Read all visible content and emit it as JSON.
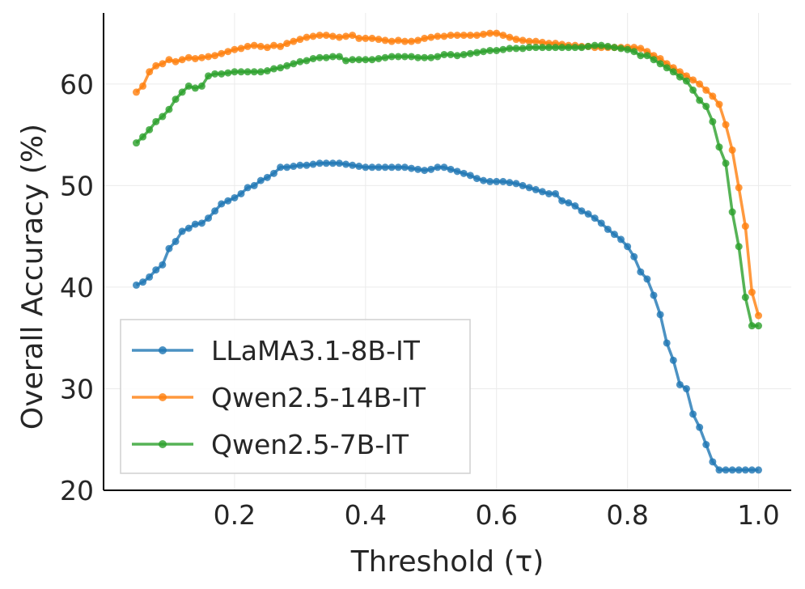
{
  "chart_data": {
    "type": "line",
    "title": "",
    "xlabel": "Threshold (τ)",
    "ylabel": "Overall Accuracy (%)",
    "xlim": [
      0.0,
      1.05
    ],
    "ylim": [
      20,
      67
    ],
    "xticks": [
      0.2,
      0.4,
      0.6,
      0.8,
      1.0
    ],
    "xtick_labels": [
      "0.2",
      "0.4",
      "0.6",
      "0.8",
      "1.0"
    ],
    "yticks": [
      20,
      30,
      40,
      50,
      60
    ],
    "ytick_labels": [
      "20",
      "30",
      "40",
      "50",
      "60"
    ],
    "grid": true,
    "legend_position": "lower-left",
    "x": [
      0.05,
      0.06,
      0.07,
      0.08,
      0.09,
      0.1,
      0.11,
      0.12,
      0.13,
      0.14,
      0.15,
      0.16,
      0.17,
      0.18,
      0.19,
      0.2,
      0.21,
      0.22,
      0.23,
      0.24,
      0.25,
      0.26,
      0.27,
      0.28,
      0.29,
      0.3,
      0.31,
      0.32,
      0.33,
      0.34,
      0.35,
      0.36,
      0.37,
      0.38,
      0.39,
      0.4,
      0.41,
      0.42,
      0.43,
      0.44,
      0.45,
      0.46,
      0.47,
      0.48,
      0.49,
      0.5,
      0.51,
      0.52,
      0.53,
      0.54,
      0.55,
      0.56,
      0.57,
      0.58,
      0.59,
      0.6,
      0.61,
      0.62,
      0.63,
      0.64,
      0.65,
      0.66,
      0.67,
      0.68,
      0.69,
      0.7,
      0.71,
      0.72,
      0.73,
      0.74,
      0.75,
      0.76,
      0.77,
      0.78,
      0.79,
      0.8,
      0.81,
      0.82,
      0.83,
      0.84,
      0.85,
      0.86,
      0.87,
      0.88,
      0.89,
      0.9,
      0.91,
      0.92,
      0.93,
      0.94,
      0.95,
      0.96,
      0.97,
      0.98,
      0.99,
      1.0
    ],
    "series": [
      {
        "name": "LLaMA3.1-8B-IT",
        "color": "#1f77b4",
        "values": [
          40.2,
          40.5,
          41.0,
          41.7,
          42.2,
          43.8,
          44.5,
          45.5,
          45.8,
          46.2,
          46.3,
          46.8,
          47.5,
          48.2,
          48.5,
          48.8,
          49.2,
          49.8,
          50.0,
          50.5,
          50.8,
          51.2,
          51.8,
          51.8,
          51.9,
          52.0,
          52.0,
          52.1,
          52.2,
          52.2,
          52.2,
          52.2,
          52.1,
          52.0,
          51.9,
          51.8,
          51.8,
          51.8,
          51.8,
          51.8,
          51.8,
          51.8,
          51.7,
          51.6,
          51.5,
          51.6,
          51.8,
          51.8,
          51.6,
          51.4,
          51.2,
          51.0,
          50.7,
          50.5,
          50.4,
          50.4,
          50.4,
          50.3,
          50.2,
          50.0,
          49.8,
          49.6,
          49.4,
          49.2,
          49.2,
          48.5,
          48.3,
          48.0,
          47.5,
          47.2,
          46.8,
          46.3,
          45.7,
          45.2,
          44.7,
          44.0,
          43.0,
          41.5,
          40.8,
          39.2,
          37.3,
          34.5,
          32.8,
          30.4,
          30.0,
          27.5,
          26.2,
          24.5,
          22.8,
          22.0,
          22.0,
          22.0,
          22.0,
          22.0,
          22.0,
          22.0
        ]
      },
      {
        "name": "Qwen2.5-14B-IT",
        "color": "#ff7f0e",
        "values": [
          59.2,
          59.8,
          61.2,
          61.8,
          62.0,
          62.4,
          62.2,
          62.4,
          62.6,
          62.5,
          62.6,
          62.7,
          62.8,
          63.0,
          63.2,
          63.4,
          63.5,
          63.7,
          63.8,
          63.7,
          63.6,
          63.8,
          63.7,
          64.0,
          64.2,
          64.4,
          64.6,
          64.7,
          64.8,
          64.8,
          64.7,
          64.6,
          64.7,
          64.8,
          64.5,
          64.5,
          64.5,
          64.4,
          64.3,
          64.2,
          64.3,
          64.2,
          64.2,
          64.3,
          64.5,
          64.6,
          64.7,
          64.7,
          64.8,
          64.8,
          64.8,
          64.8,
          64.8,
          64.9,
          65.0,
          65.0,
          64.8,
          64.6,
          64.4,
          64.3,
          64.2,
          64.2,
          64.1,
          64.0,
          64.0,
          63.9,
          63.8,
          63.8,
          63.7,
          63.7,
          63.6,
          63.6,
          63.6,
          63.6,
          63.6,
          63.6,
          63.6,
          63.5,
          63.2,
          62.8,
          62.5,
          62.0,
          61.6,
          61.2,
          60.8,
          60.4,
          60.0,
          59.4,
          58.8,
          58.0,
          56.0,
          53.5,
          49.8,
          46.0,
          39.5,
          37.2
        ]
      },
      {
        "name": "Qwen2.5-7B-IT",
        "color": "#2ca02c",
        "values": [
          54.2,
          54.8,
          55.5,
          56.3,
          56.8,
          57.5,
          58.5,
          59.2,
          59.8,
          59.6,
          59.8,
          60.8,
          61.0,
          61.0,
          61.1,
          61.2,
          61.2,
          61.2,
          61.2,
          61.2,
          61.3,
          61.5,
          61.6,
          61.8,
          62.0,
          62.2,
          62.3,
          62.5,
          62.6,
          62.6,
          62.7,
          62.7,
          62.3,
          62.4,
          62.4,
          62.4,
          62.4,
          62.5,
          62.6,
          62.7,
          62.7,
          62.7,
          62.7,
          62.6,
          62.6,
          62.6,
          62.7,
          62.9,
          62.9,
          62.8,
          62.9,
          63.0,
          63.1,
          63.2,
          63.3,
          63.3,
          63.4,
          63.5,
          63.5,
          63.5,
          63.6,
          63.6,
          63.6,
          63.6,
          63.6,
          63.6,
          63.6,
          63.6,
          63.6,
          63.7,
          63.8,
          63.8,
          63.7,
          63.6,
          63.5,
          63.4,
          63.2,
          62.8,
          62.8,
          62.4,
          62.0,
          61.6,
          61.2,
          60.7,
          60.3,
          59.4,
          58.4,
          57.8,
          56.3,
          53.8,
          52.2,
          47.4,
          44.0,
          39.0,
          36.2,
          36.2
        ]
      }
    ]
  }
}
